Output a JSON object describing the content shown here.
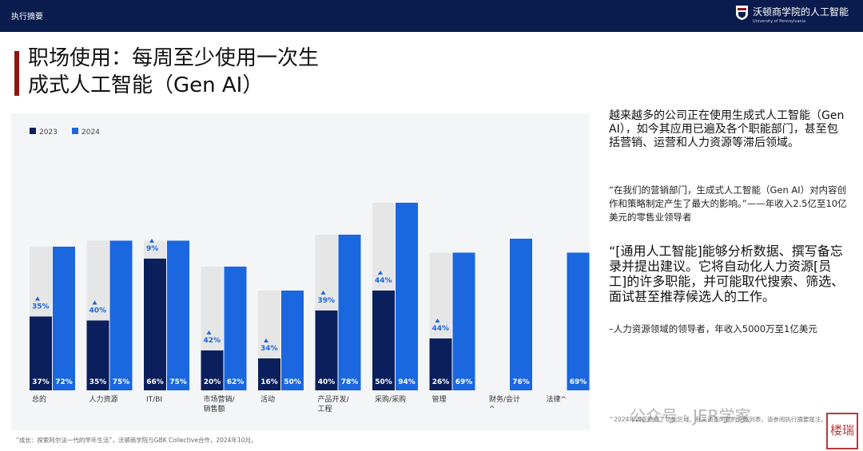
{
  "header": {
    "section": "执行摘要",
    "brand_name": "沃顿商学院的人工智能",
    "brand_sub": "University of Pennsylvania"
  },
  "title": {
    "line1": "职场使用：每周至少使用一次生",
    "line2": "成式人工智能（Gen AI）"
  },
  "colors": {
    "y2023": "#0b1f5c",
    "y2024": "#1a67e0",
    "ghost": "#e6e6e6",
    "accent": "#8c1515",
    "header_bg": "#0a1b4d",
    "arrow": "#1a67e0"
  },
  "chart_data": {
    "type": "bar",
    "categories": [
      "总的",
      "人力资源",
      "IT/BI",
      "市场营销/销售额",
      "活动",
      "产品开发/工程",
      "采购/采购",
      "管理",
      "财务/会计^",
      "法律^"
    ],
    "series": [
      {
        "name": "2023",
        "values": [
          37,
          35,
          66,
          20,
          16,
          40,
          50,
          26,
          null,
          null
        ]
      },
      {
        "name": "2024",
        "values": [
          72,
          75,
          75,
          62,
          50,
          78,
          94,
          69,
          76,
          69
        ]
      }
    ],
    "growth_labels": [
      "35%",
      "40%",
      "9%",
      "42%",
      "34%",
      "39%",
      "44%",
      "44%",
      null,
      null
    ],
    "value_labels_2023": [
      "37%",
      "35%",
      "66%",
      "20%",
      "16%",
      "40%",
      "50%",
      "26%",
      null,
      null
    ],
    "value_labels_2024": [
      "72%",
      "75%",
      "75%",
      "62%",
      "50%",
      "78%",
      "94%",
      "69%",
      "76%",
      "69%"
    ],
    "legend": {
      "placement": "top-left",
      "entries": [
        "2023",
        "2024"
      ]
    },
    "ylim": [
      0,
      100
    ],
    "grid": false
  },
  "right": {
    "p1": "越来越多的公司正在使用生成式人工智能（Gen AI），如今其应用已遍及各个职能部门，甚至包括营销、运营和人力资源等滞后领域。",
    "quote1": "“在我们的营销部门，生成式人工智能（Gen AI）对内容创作和策略制定产生了最大的影响。”——年收入2.5亿至10亿美元的零售业领导者",
    "quote2": "“[通用人工智能]能够分析数据、撰写备忘录并提出建议。它将自动化人力资源[员工]的许多职能，并可能取代搜索、筛选、面试甚至推荐候选人的工作。",
    "quote2_attr": "–人力资源领域的领导者，年收入5000万至1亿美元"
  },
  "source": "“成长：探索阿尔法一代的早年生活”，沃顿商学院与GBK Collective合作，2024年10月。",
  "footnote": "^2024年调查新增了功能区域。有关调查问题的完整列表，请参阅执行摘要尾注。",
  "watermark": "公众号 · JER学家",
  "stamp": "楼瑞"
}
